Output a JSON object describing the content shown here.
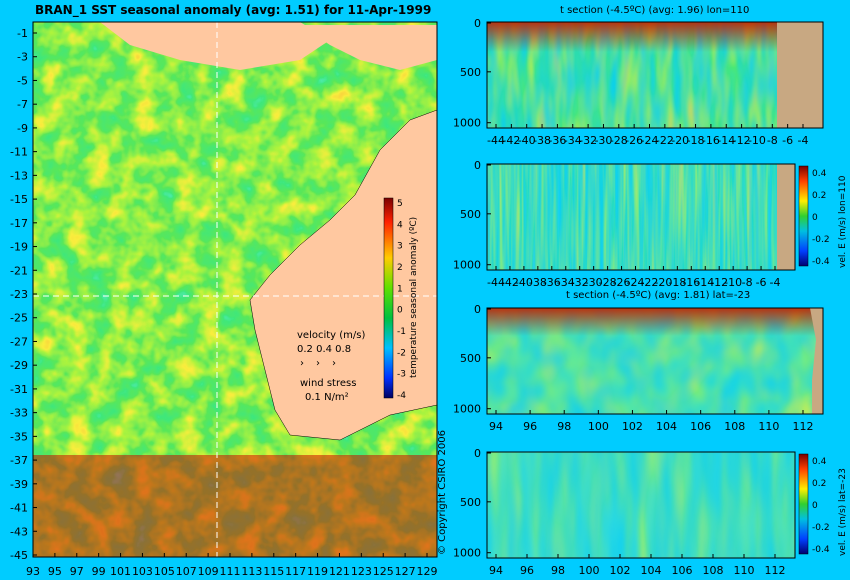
{
  "map": {
    "title": "BRAN_1  SST seasonal anomaly  (avg: 1.51)  for  11-Apr-1999",
    "lat_labels": [
      "-1",
      "-3",
      "-5",
      "-7",
      "-9",
      "-11",
      "-13",
      "-15",
      "-17",
      "-19",
      "-21",
      "-23",
      "-25",
      "-27",
      "-29",
      "-31",
      "-33",
      "-35",
      "-37",
      "-39",
      "-41",
      "-43",
      "-45"
    ],
    "lon_labels": [
      "93",
      "95",
      "97",
      "99",
      "101",
      "103",
      "105",
      "107",
      "109",
      "111",
      "113",
      "115",
      "117",
      "119",
      "121",
      "123",
      "125",
      "127",
      "129"
    ],
    "colorbar": {
      "ticks": [
        "5",
        "4",
        "3",
        "2",
        "1",
        "0",
        "-1",
        "-2",
        "-3",
        "-4"
      ],
      "label": "temperature seasonal anomaly (ºC)"
    },
    "legend": {
      "velocity_title": "velocity (m/s)",
      "velocity_values": "0.2 0.4 0.8",
      "wind_title": "wind stress",
      "wind_value": "0.1 N/m²"
    },
    "copyright": "© Copyright CSIRO 2006"
  },
  "panels": [
    {
      "title": "t section (-4.5ºC) (avg: 1.96) lon=110",
      "y_ticks": [
        "0",
        "500",
        "1000"
      ],
      "x_ticks": [
        "-44",
        "-42",
        "-40",
        "-38",
        "-36",
        "-34",
        "-32",
        "-30",
        "-28",
        "-26",
        "-24",
        "-22",
        "-20",
        "-18",
        "-16",
        "-14",
        "-12",
        "-10",
        "-8",
        "-6",
        "-4"
      ]
    },
    {
      "title": "",
      "y_ticks": [
        "0",
        "500",
        "1000"
      ],
      "x_ticks": [
        "-44",
        "-42",
        "-40",
        "-38",
        "-36",
        "-34",
        "-32",
        "-30",
        "-28",
        "-26",
        "-24",
        "-22",
        "-20",
        "-18",
        "-16",
        "-14",
        "-12",
        "-10",
        "-8",
        "-6",
        "-4"
      ],
      "colorbar_ticks": [
        "0.4",
        "0.2",
        "0",
        "-0.2",
        "-0.4"
      ],
      "colorbar_label": "vel. E (m/s) lon=110"
    },
    {
      "title": "t section (-4.5ºC) (avg: 1.81) lat=-23",
      "y_ticks": [
        "0",
        "500",
        "1000"
      ],
      "x_ticks": [
        "94",
        "96",
        "98",
        "100",
        "102",
        "104",
        "106",
        "108",
        "110",
        "112"
      ]
    },
    {
      "title": "",
      "y_ticks": [
        "0",
        "500",
        "1000"
      ],
      "x_ticks": [
        "94",
        "96",
        "98",
        "100",
        "102",
        "104",
        "106",
        "108",
        "110",
        "112"
      ],
      "colorbar_ticks": [
        "0.4",
        "0.2",
        "0",
        "-0.2",
        "-0.4"
      ],
      "colorbar_label": "vel. E (m/s) lat=-23"
    }
  ],
  "chart_data": [
    {
      "type": "heatmap",
      "title": "BRAN_1  SST seasonal anomaly  (avg: 1.51)  for  11-Apr-1999",
      "x_range": [
        93,
        130
      ],
      "y_range": [
        -45,
        0
      ],
      "colorbar_range": [
        -4,
        5
      ],
      "colorbar_label": "temperature seasonal anomaly (ºC)"
    },
    {
      "type": "heatmap",
      "title": "t section (-4.5ºC) (avg: 1.96) lon=110",
      "x_range": [
        -45,
        -3
      ],
      "y_range": [
        1050,
        0
      ]
    },
    {
      "type": "heatmap",
      "x_range": [
        -45,
        -3
      ],
      "y_range": [
        1050,
        0
      ],
      "colorbar_range": [
        -0.5,
        0.5
      ],
      "colorbar_label": "vel. E (m/s) lon=110"
    },
    {
      "type": "heatmap",
      "title": "t section (-4.5ºC) (avg: 1.81) lat=-23",
      "x_range": [
        93,
        114
      ],
      "y_range": [
        1050,
        0
      ]
    },
    {
      "type": "heatmap",
      "x_range": [
        93,
        114
      ],
      "y_range": [
        1050,
        0
      ],
      "colorbar_range": [
        -0.5,
        0.5
      ],
      "colorbar_label": "vel. E (m/s) lat=-23"
    }
  ]
}
